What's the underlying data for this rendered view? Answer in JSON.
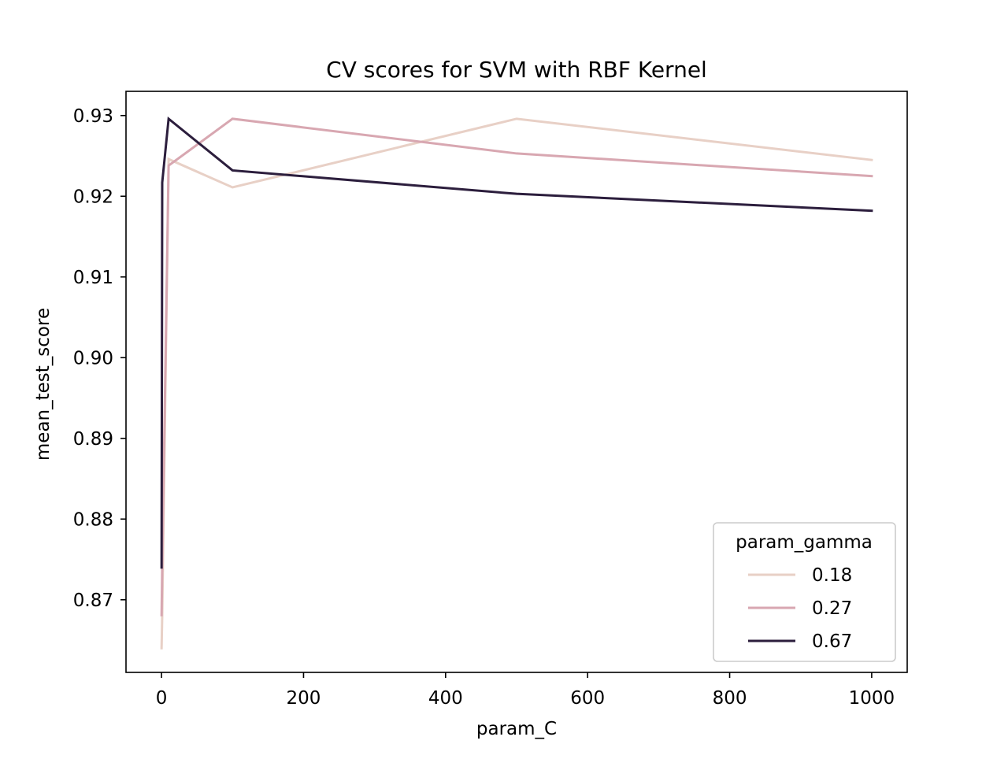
{
  "chart_data": {
    "type": "line",
    "title": "CV scores for SVM with RBF Kernel",
    "xlabel": "param_C",
    "ylabel": "mean_test_score",
    "xlim": [
      -50,
      1050
    ],
    "ylim": [
      0.861,
      0.933
    ],
    "xticks": [
      0,
      200,
      400,
      600,
      800,
      1000
    ],
    "xtick_labels": [
      "0",
      "200",
      "400",
      "600",
      "800",
      "1000"
    ],
    "yticks": [
      0.87,
      0.88,
      0.89,
      0.9,
      0.91,
      0.92,
      0.93
    ],
    "ytick_labels": [
      "0.87",
      "0.88",
      "0.89",
      "0.90",
      "0.91",
      "0.92",
      "0.93"
    ],
    "grid": false,
    "legend": {
      "title": "param_gamma",
      "placement": "lower-right"
    },
    "x": [
      0.1,
      1,
      10,
      100,
      500,
      1000
    ],
    "series": [
      {
        "name": "0.18",
        "color": "#e8d0c6",
        "values": [
          0.864,
          0.8681,
          0.9246,
          0.9211,
          0.9296,
          0.9245
        ]
      },
      {
        "name": "0.27",
        "color": "#d8a7b1",
        "values": [
          0.8681,
          0.874,
          0.9238,
          0.9296,
          0.9253,
          0.9225
        ]
      },
      {
        "name": "0.67",
        "color": "#2c1e3d",
        "values": [
          0.874,
          0.9217,
          0.9296,
          0.9232,
          0.9203,
          0.9182
        ]
      }
    ]
  }
}
